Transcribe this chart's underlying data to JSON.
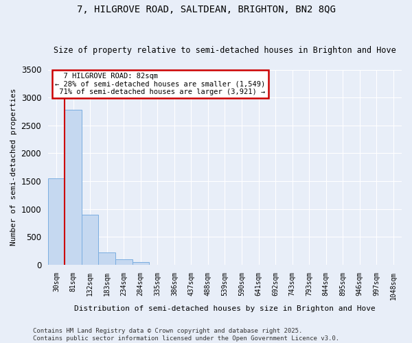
{
  "title1": "7, HILGROVE ROAD, SALTDEAN, BRIGHTON, BN2 8QG",
  "title2": "Size of property relative to semi-detached houses in Brighton and Hove",
  "xlabel": "Distribution of semi-detached houses by size in Brighton and Hove",
  "ylabel": "Number of semi-detached properties",
  "bar_labels": [
    "30sqm",
    "81sqm",
    "132sqm",
    "183sqm",
    "234sqm",
    "284sqm",
    "335sqm",
    "386sqm",
    "437sqm",
    "488sqm",
    "539sqm",
    "590sqm",
    "641sqm",
    "692sqm",
    "743sqm",
    "793sqm",
    "844sqm",
    "895sqm",
    "946sqm",
    "997sqm",
    "1048sqm"
  ],
  "bar_values": [
    1549,
    2780,
    900,
    215,
    95,
    45,
    0,
    0,
    0,
    0,
    0,
    0,
    0,
    0,
    0,
    0,
    0,
    0,
    0,
    0,
    0
  ],
  "bar_color": "#c5d8f0",
  "bar_edge_color": "#7aade0",
  "property_label": "7 HILGROVE ROAD: 82sqm",
  "pct_smaller": 28,
  "num_smaller": 1549,
  "pct_larger": 71,
  "num_larger": 3921,
  "vline_bar_index": 1,
  "ylim": [
    0,
    3500
  ],
  "yticks": [
    0,
    500,
    1000,
    1500,
    2000,
    2500,
    3000,
    3500
  ],
  "bg_color": "#e8eef8",
  "grid_color": "#ffffff",
  "annotation_box_facecolor": "#ffffff",
  "annotation_border_color": "#cc0000",
  "vline_color": "#cc0000",
  "footer": "Contains HM Land Registry data © Crown copyright and database right 2025.\nContains public sector information licensed under the Open Government Licence v3.0."
}
